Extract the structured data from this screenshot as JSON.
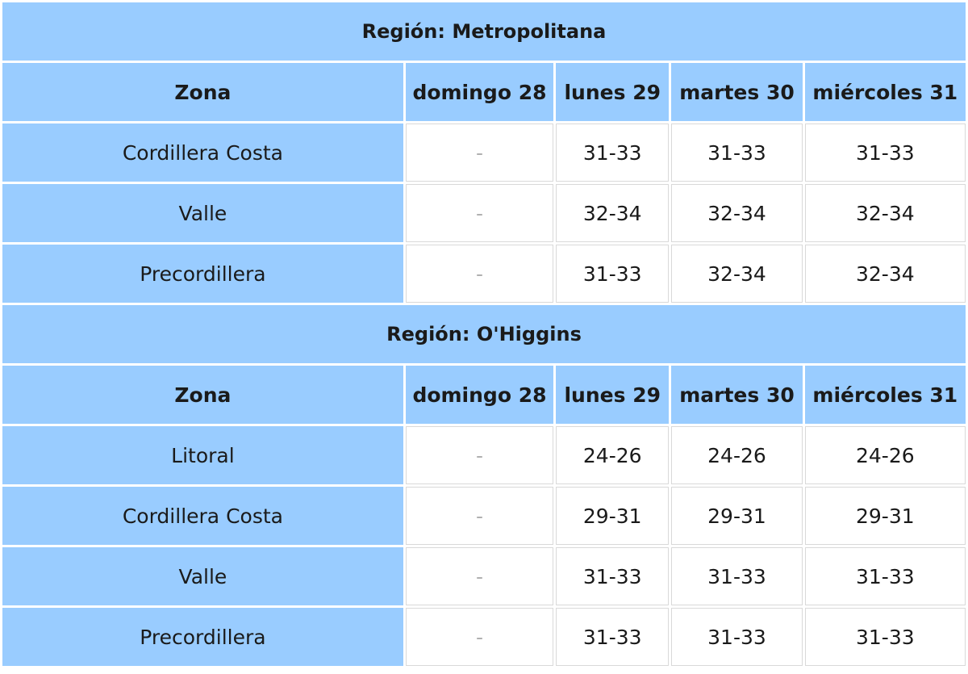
{
  "headers": {
    "zona": "Zona",
    "d1": "domingo 28",
    "d2": "lunes 29",
    "d3": "martes 30",
    "d4": "miércoles 31"
  },
  "regions": [
    {
      "title": "Región: Metropolitana",
      "rows": [
        {
          "zona": "Cordillera Costa",
          "d1": "-",
          "d2": "31-33",
          "d3": "31-33",
          "d4": "31-33"
        },
        {
          "zona": "Valle",
          "d1": "-",
          "d2": "32-34",
          "d3": "32-34",
          "d4": "32-34"
        },
        {
          "zona": "Precordillera",
          "d1": "-",
          "d2": "31-33",
          "d3": "32-34",
          "d4": "32-34"
        }
      ]
    },
    {
      "title": "Región: O'Higgins",
      "rows": [
        {
          "zona": "Litoral",
          "d1": "-",
          "d2": "24-26",
          "d3": "24-26",
          "d4": "24-26"
        },
        {
          "zona": "Cordillera Costa",
          "d1": "-",
          "d2": "29-31",
          "d3": "29-31",
          "d4": "29-31"
        },
        {
          "zona": "Valle",
          "d1": "-",
          "d2": "31-33",
          "d3": "31-33",
          "d4": "31-33"
        },
        {
          "zona": "Precordillera",
          "d1": "-",
          "d2": "31-33",
          "d3": "31-33",
          "d4": "31-33"
        }
      ]
    }
  ]
}
